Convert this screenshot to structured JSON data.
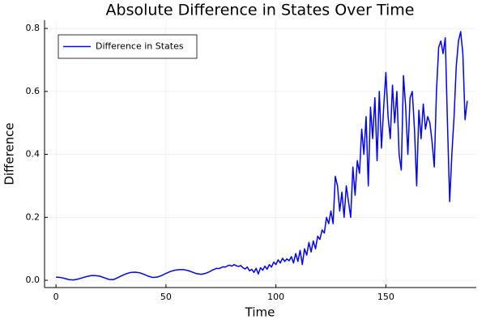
{
  "chart_data": {
    "type": "line",
    "title": "Absolute Difference in States Over Time",
    "x_label": "Time",
    "y_label": "Difference",
    "x": [
      0,
      2,
      4,
      6,
      8,
      10,
      12,
      14,
      16,
      18,
      20,
      22,
      24,
      26,
      28,
      30,
      32,
      34,
      36,
      38,
      40,
      42,
      44,
      46,
      48,
      50,
      52,
      54,
      56,
      58,
      60,
      62,
      64,
      66,
      68,
      70,
      71,
      72,
      73,
      74,
      75,
      76,
      77,
      78,
      79,
      80,
      81,
      82,
      83,
      84,
      85,
      86,
      87,
      88,
      89,
      90,
      91,
      92,
      93,
      94,
      95,
      96,
      97,
      98,
      99,
      100,
      101,
      102,
      103,
      104,
      105,
      106,
      107,
      108,
      109,
      110,
      111,
      112,
      113,
      114,
      115,
      116,
      117,
      118,
      119,
      120,
      121,
      122,
      123,
      124,
      125,
      126,
      127,
      128,
      129,
      130,
      131,
      132,
      133,
      134,
      135,
      136,
      137,
      138,
      139,
      140,
      141,
      142,
      143,
      144,
      145,
      146,
      147,
      148,
      149,
      150,
      151,
      152,
      153,
      154,
      155,
      156,
      157,
      158,
      159,
      160,
      161,
      162,
      163,
      164,
      165,
      166,
      167,
      168,
      169,
      170,
      171,
      172,
      173,
      174,
      175,
      176,
      177,
      178,
      179,
      180,
      181,
      182,
      183,
      184,
      185,
      186,
      187
    ],
    "series": [
      {
        "name": "Difference in States",
        "color": "#0000ff",
        "values": [
          0.01,
          0.009,
          0.006,
          0.002,
          0.001,
          0.004,
          0.008,
          0.012,
          0.015,
          0.015,
          0.013,
          0.008,
          0.003,
          0.002,
          0.008,
          0.015,
          0.021,
          0.025,
          0.026,
          0.024,
          0.019,
          0.013,
          0.009,
          0.01,
          0.015,
          0.022,
          0.028,
          0.032,
          0.034,
          0.034,
          0.031,
          0.026,
          0.021,
          0.019,
          0.022,
          0.028,
          0.032,
          0.035,
          0.038,
          0.037,
          0.04,
          0.043,
          0.042,
          0.046,
          0.048,
          0.045,
          0.05,
          0.046,
          0.044,
          0.047,
          0.04,
          0.036,
          0.042,
          0.03,
          0.035,
          0.025,
          0.038,
          0.02,
          0.04,
          0.032,
          0.045,
          0.035,
          0.05,
          0.042,
          0.058,
          0.05,
          0.065,
          0.055,
          0.07,
          0.06,
          0.068,
          0.062,
          0.075,
          0.055,
          0.085,
          0.06,
          0.095,
          0.05,
          0.1,
          0.08,
          0.12,
          0.09,
          0.125,
          0.1,
          0.14,
          0.13,
          0.16,
          0.15,
          0.2,
          0.18,
          0.22,
          0.18,
          0.33,
          0.3,
          0.22,
          0.28,
          0.2,
          0.3,
          0.25,
          0.2,
          0.36,
          0.27,
          0.38,
          0.34,
          0.48,
          0.4,
          0.52,
          0.3,
          0.55,
          0.45,
          0.58,
          0.38,
          0.6,
          0.42,
          0.55,
          0.66,
          0.52,
          0.45,
          0.62,
          0.5,
          0.6,
          0.4,
          0.35,
          0.65,
          0.55,
          0.4,
          0.58,
          0.6,
          0.48,
          0.3,
          0.54,
          0.45,
          0.56,
          0.48,
          0.52,
          0.5,
          0.44,
          0.36,
          0.6,
          0.74,
          0.76,
          0.72,
          0.77,
          0.5,
          0.25,
          0.4,
          0.52,
          0.68,
          0.76,
          0.79,
          0.72,
          0.51,
          0.57
        ]
      }
    ],
    "xlim": [
      -5.2,
      191.1
    ],
    "ylim": [
      -0.023,
      0.826
    ],
    "xticks": [
      0,
      50,
      100,
      150
    ],
    "yticks": [
      {
        "value": 0,
        "label": "0.0"
      },
      {
        "value": 0.2,
        "label": "0.2"
      },
      {
        "value": 0.4,
        "label": "0.4"
      },
      {
        "value": 0.6,
        "label": "0.6"
      },
      {
        "value": 0.8,
        "label": "0.8"
      }
    ],
    "grid": true,
    "legend": "top-left"
  }
}
